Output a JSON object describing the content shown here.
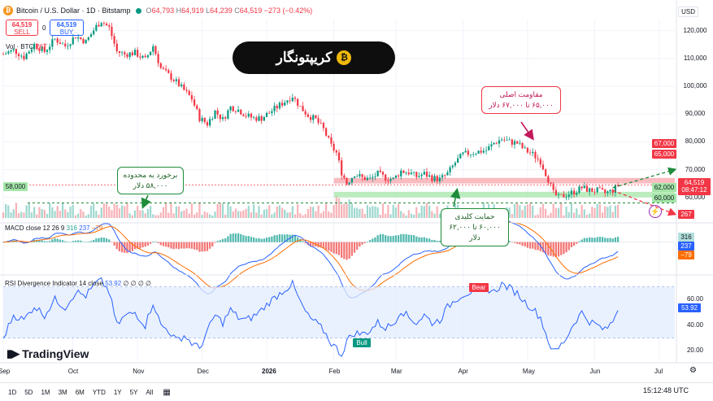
{
  "header": {
    "title": "Bitcoin / U.S. Dollar · 1D · Bitstamp",
    "o": "64,793",
    "h": "64,919",
    "l": "64,239",
    "c": "64,519",
    "chg": "−273 (−0.42%)",
    "o_lbl": "O",
    "h_lbl": "H",
    "l_lbl": "L",
    "c_lbl": "C",
    "currency": "USD"
  },
  "order": {
    "sell_price": "64,519",
    "sell_label": "SELL",
    "buy_price": "64,519",
    "buy_label": "BUY",
    "spread": "0"
  },
  "volume_label": {
    "name": "Vol · BTC",
    "value": "267"
  },
  "banner": {
    "text": "کریپتونگار",
    "logo_glyph": "₿"
  },
  "annotations": {
    "resistance": {
      "line1": "مقاومت اصلی",
      "line2": "۶۵,۰۰۰ تا ۶۷,۰۰۰ دلار"
    },
    "breakout": {
      "line1": "برخورد به محدوده",
      "line2": "۵۸,۰۰۰ دلار"
    },
    "support": {
      "line1": "حمایت کلیدی",
      "line2": "۶۰,۰۰۰ تا ۶۲,۰۰۰ دلار"
    }
  },
  "macd": {
    "name": "MACD close 12 26 9",
    "hist": "316",
    "macd": "237",
    "signal": "−79",
    "hist_tag": "316",
    "macd_tag": "237",
    "signal_tag": "−79"
  },
  "rsi": {
    "name": "RSI Divergence Indicator 14 close",
    "value": "53.92",
    "extra": "∅ ∅ ∅ ∅",
    "bear": "Bear",
    "bull": "Bull"
  },
  "branding": {
    "name": "TradingView"
  },
  "timeframes": [
    "1D",
    "5D",
    "1M",
    "3M",
    "6M",
    "YTD",
    "1Y",
    "5Y",
    "All"
  ],
  "clock": "15:12:48 UTC",
  "colors": {
    "up": "#089981",
    "down": "#f23645",
    "resistance_zone": "#f7a6ac",
    "support_zone": "#a5e6a8",
    "macd": "#2962ff",
    "signal": "#ff6d00",
    "rsi": "#2962ff"
  },
  "chart_data": {
    "type": "candlestick",
    "title": "Bitcoin / U.S. Dollar · 1D · Bitstamp",
    "x_ticks": [
      "Sep",
      "Oct",
      "Nov",
      "Dec",
      "2026",
      "Feb",
      "Mar",
      "Apr",
      "May",
      "Jun",
      "Jul"
    ],
    "price_ticks": [
      "120,000",
      "110,000",
      "100,000",
      "90,000",
      "80,000",
      "70,000",
      "60,000"
    ],
    "price_range": [
      52000,
      124000
    ],
    "zones": [
      {
        "name": "resistance",
        "from": 65000,
        "to": 67000,
        "labels": [
          "67,000",
          "65,000"
        ]
      },
      {
        "name": "support",
        "from": 60000,
        "to": 62000,
        "labels": [
          "62,000",
          "60,000"
        ]
      }
    ],
    "level_58k": {
      "value": 58000,
      "label": "58,000"
    },
    "last_price": {
      "value": 64519,
      "label": "64,519",
      "countdown": "08:47:12"
    },
    "close_path": [
      [
        0,
        111500
      ],
      [
        4,
        113000
      ],
      [
        8,
        110500
      ],
      [
        12,
        115000
      ],
      [
        16,
        112500
      ],
      [
        20,
        117000
      ],
      [
        24,
        114500
      ],
      [
        28,
        118000
      ],
      [
        32,
        116000
      ],
      [
        36,
        121500
      ],
      [
        38,
        123500
      ],
      [
        41,
        121000
      ],
      [
        44,
        112500
      ],
      [
        47,
        111500
      ],
      [
        51,
        112000
      ],
      [
        55,
        109500
      ],
      [
        58,
        114500
      ],
      [
        61,
        106500
      ],
      [
        64,
        104000
      ],
      [
        67,
        101500
      ],
      [
        70,
        98500
      ],
      [
        73,
        95500
      ],
      [
        76,
        88500
      ],
      [
        79,
        86500
      ],
      [
        82,
        91000
      ],
      [
        85,
        88000
      ],
      [
        88,
        92500
      ],
      [
        91,
        91500
      ],
      [
        94,
        89500
      ],
      [
        97,
        88500
      ],
      [
        100,
        88500
      ],
      [
        103,
        90500
      ],
      [
        106,
        92500
      ],
      [
        109,
        94500
      ],
      [
        112,
        96500
      ],
      [
        115,
        92500
      ],
      [
        118,
        89500
      ],
      [
        121,
        88000
      ],
      [
        124,
        84500
      ],
      [
        127,
        78500
      ],
      [
        129,
        76000
      ],
      [
        131,
        69000
      ],
      [
        133,
        65000
      ],
      [
        136,
        68500
      ],
      [
        139,
        67000
      ],
      [
        142,
        66500
      ],
      [
        145,
        68500
      ],
      [
        148,
        67000
      ],
      [
        151,
        66500
      ],
      [
        154,
        69500
      ],
      [
        157,
        69000
      ],
      [
        160,
        67500
      ],
      [
        163,
        68500
      ],
      [
        166,
        67000
      ],
      [
        169,
        66500
      ],
      [
        172,
        68500
      ],
      [
        175,
        72500
      ],
      [
        178,
        75500
      ],
      [
        181,
        76000
      ],
      [
        184,
        76500
      ],
      [
        187,
        77000
      ],
      [
        190,
        79500
      ],
      [
        193,
        81000
      ],
      [
        196,
        80000
      ],
      [
        199,
        79500
      ],
      [
        202,
        77000
      ],
      [
        205,
        75500
      ],
      [
        208,
        73000
      ],
      [
        211,
        66500
      ],
      [
        213,
        61500
      ],
      [
        215,
        60000
      ],
      [
        218,
        61000
      ],
      [
        221,
        62000
      ],
      [
        224,
        63500
      ],
      [
        227,
        62500
      ],
      [
        230,
        62500
      ],
      [
        233,
        61500
      ],
      [
        236,
        62500
      ],
      [
        238,
        64519
      ]
    ],
    "projection_up": {
      "from": [
        236,
        63500
      ],
      "to": [
        260,
        70000
      ]
    },
    "projection_down": {
      "from": [
        236,
        62500
      ],
      "to": [
        260,
        54000
      ]
    },
    "volume_value": 267,
    "macd_range": [
      -3500,
      1700
    ],
    "macd_last": {
      "hist": 316,
      "macd": 237,
      "signal": -79
    },
    "rsi_ticks": [
      "60.00",
      "40.00",
      "20.00"
    ],
    "rsi_band": [
      30,
      70
    ],
    "rsi_range": [
      12,
      78
    ],
    "rsi_path": [
      [
        0,
        30
      ],
      [
        4,
        48
      ],
      [
        8,
        44
      ],
      [
        12,
        55
      ],
      [
        16,
        48
      ],
      [
        20,
        60
      ],
      [
        24,
        54
      ],
      [
        28,
        66
      ],
      [
        32,
        63
      ],
      [
        36,
        73
      ],
      [
        38,
        75
      ],
      [
        41,
        66
      ],
      [
        44,
        40
      ],
      [
        47,
        47
      ],
      [
        51,
        50
      ],
      [
        55,
        40
      ],
      [
        58,
        58
      ],
      [
        61,
        40
      ],
      [
        64,
        36
      ],
      [
        67,
        28
      ],
      [
        70,
        32
      ],
      [
        73,
        26
      ],
      [
        76,
        22
      ],
      [
        79,
        35
      ],
      [
        82,
        48
      ],
      [
        85,
        42
      ],
      [
        88,
        52
      ],
      [
        91,
        46
      ],
      [
        94,
        44
      ],
      [
        97,
        47
      ],
      [
        100,
        52
      ],
      [
        103,
        58
      ],
      [
        106,
        63
      ],
      [
        109,
        68
      ],
      [
        112,
        72
      ],
      [
        115,
        58
      ],
      [
        118,
        47
      ],
      [
        121,
        42
      ],
      [
        124,
        36
      ],
      [
        127,
        26
      ],
      [
        129,
        22
      ],
      [
        131,
        17
      ],
      [
        133,
        28
      ],
      [
        136,
        34
      ],
      [
        139,
        33
      ],
      [
        142,
        36
      ],
      [
        145,
        42
      ],
      [
        148,
        38
      ],
      [
        151,
        41
      ],
      [
        154,
        52
      ],
      [
        157,
        46
      ],
      [
        160,
        42
      ],
      [
        163,
        48
      ],
      [
        166,
        42
      ],
      [
        169,
        44
      ],
      [
        172,
        54
      ],
      [
        175,
        60
      ],
      [
        178,
        64
      ],
      [
        181,
        66
      ],
      [
        184,
        67
      ],
      [
        187,
        69
      ],
      [
        190,
        66
      ],
      [
        193,
        72
      ],
      [
        196,
        69
      ],
      [
        199,
        65
      ],
      [
        202,
        58
      ],
      [
        205,
        53
      ],
      [
        208,
        46
      ],
      [
        211,
        28
      ],
      [
        213,
        19
      ],
      [
        215,
        22
      ],
      [
        218,
        30
      ],
      [
        221,
        42
      ],
      [
        224,
        50
      ],
      [
        227,
        43
      ],
      [
        230,
        40
      ],
      [
        233,
        36
      ],
      [
        236,
        43
      ],
      [
        238,
        53.92
      ]
    ]
  }
}
